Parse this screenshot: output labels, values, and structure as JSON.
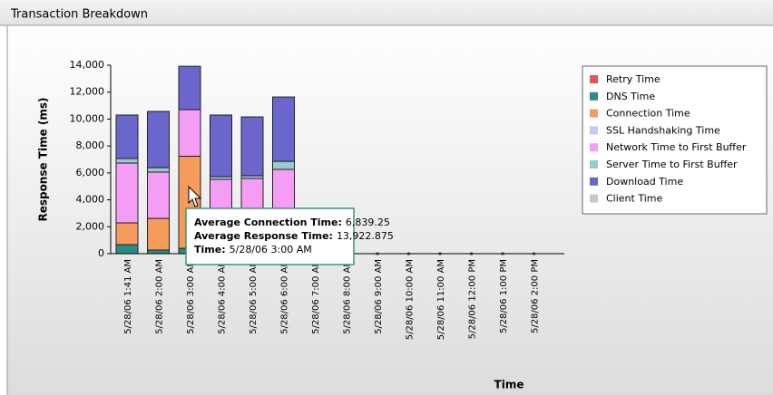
{
  "panel": {
    "title": "Transaction Breakdown"
  },
  "chart_data": {
    "type": "stacked_bar",
    "ylabel": "Response Time (ms)",
    "xlabel": "Time",
    "categories": [
      "5/28/06 1:41 AM",
      "5/28/06 2:00 AM",
      "5/28/06 3:00 AM",
      "5/28/06 4:00 AM",
      "5/28/06 5:00 AM",
      "5/28/06 6:00 AM",
      "5/28/06 7:00 AM",
      "5/28/06 8:00 AM",
      "5/28/06 9:00 AM",
      "5/28/06 10:00 AM",
      "5/28/06 11:00 AM",
      "5/28/06 12:00 PM",
      "5/28/06 1:00 PM",
      "5/28/06 2:00 PM"
    ],
    "series": [
      {
        "name": "Retry Time",
        "color": "#e85454",
        "values": [
          0,
          0,
          0,
          0,
          0,
          0,
          0,
          0,
          0,
          0,
          0,
          0,
          0,
          0
        ]
      },
      {
        "name": "DNS Time",
        "color": "#2a8c88",
        "values": [
          670,
          270,
          400,
          100,
          100,
          100,
          0,
          0,
          0,
          0,
          0,
          0,
          0,
          0
        ]
      },
      {
        "name": "Connection Time",
        "color": "#f59c5c",
        "values": [
          1620,
          2350,
          6839.25,
          200,
          200,
          200,
          0,
          0,
          0,
          0,
          0,
          0,
          0,
          0
        ]
      },
      {
        "name": "SSL Handshaking Time",
        "color": "#c8c8f0",
        "values": [
          0,
          0,
          0,
          0,
          0,
          0,
          0,
          0,
          0,
          0,
          0,
          0,
          0,
          0
        ]
      },
      {
        "name": "Network Time to First Buffer",
        "color": "#f59cf5",
        "values": [
          4440,
          3440,
          3460,
          5220,
          5290,
          5960,
          0,
          0,
          0,
          0,
          0,
          0,
          0,
          0
        ]
      },
      {
        "name": "Server Time to First Buffer",
        "color": "#98cccc",
        "values": [
          340,
          330,
          0,
          200,
          200,
          600,
          0,
          0,
          0,
          0,
          0,
          0,
          0,
          0
        ]
      },
      {
        "name": "Download Time",
        "color": "#6a66cc",
        "values": [
          3230,
          4180,
          3223.625,
          4580,
          4370,
          4780,
          0,
          0,
          0,
          0,
          0,
          0,
          0,
          0
        ]
      },
      {
        "name": "Client Time",
        "color": "#c8c8c8",
        "values": [
          0,
          0,
          0,
          0,
          0,
          0,
          0,
          0,
          0,
          0,
          0,
          0,
          0,
          0
        ]
      }
    ],
    "ylim": [
      0,
      14000
    ],
    "yticks": [
      0,
      {
        "value": 2000,
        "label": "2,000"
      },
      {
        "value": 4000,
        "label": "4,000"
      },
      {
        "value": 6000,
        "label": "6,000"
      },
      {
        "value": 8000,
        "label": "8,000"
      },
      {
        "value": 10000,
        "label": "10,000"
      },
      {
        "value": 12000,
        "label": "12,000"
      },
      {
        "value": 14000,
        "label": "14,000"
      }
    ],
    "legend": "right",
    "tooltip": [
      {
        "label": "Average Connection Time:",
        "value": "6,839.25"
      },
      {
        "label": "Average Response Time:",
        "value": "13,922.875"
      },
      {
        "label": "Time:",
        "value": "5/28/06 3:00 AM"
      }
    ]
  }
}
